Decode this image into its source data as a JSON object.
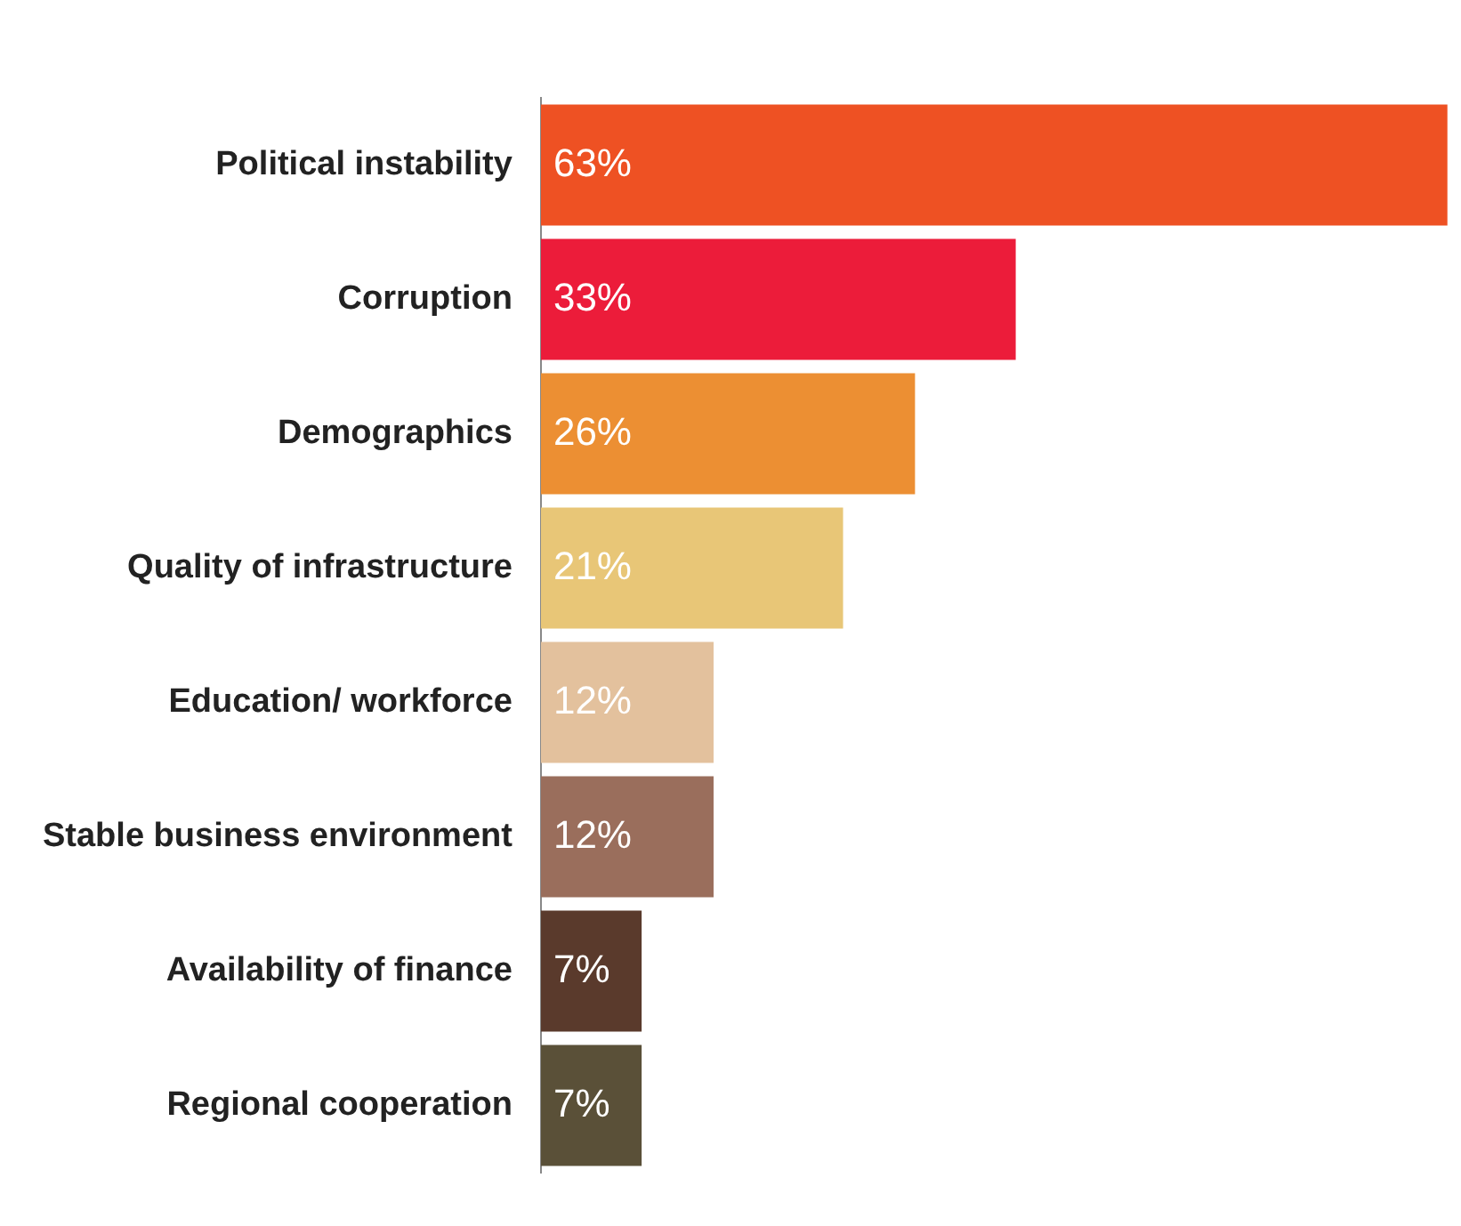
{
  "chart_data": {
    "type": "bar",
    "orientation": "horizontal",
    "categories": [
      "Political instability",
      "Corruption",
      "Demographics",
      "Quality of infrastructure",
      "Education/ workforce",
      "Stable business environment",
      "Availability of finance",
      "Regional cooperation"
    ],
    "values": [
      63,
      33,
      26,
      21,
      12,
      12,
      7,
      7
    ],
    "colors": [
      "#ee5123",
      "#ec1c3a",
      "#ec8f33",
      "#e8c677",
      "#e3c19d",
      "#9a6e5c",
      "#5a3a2c",
      "#5a5038"
    ],
    "value_labels": [
      "63%",
      "33%",
      "26%",
      "21%",
      "12%",
      "12%",
      "7%",
      "7%"
    ],
    "legend": false
  }
}
